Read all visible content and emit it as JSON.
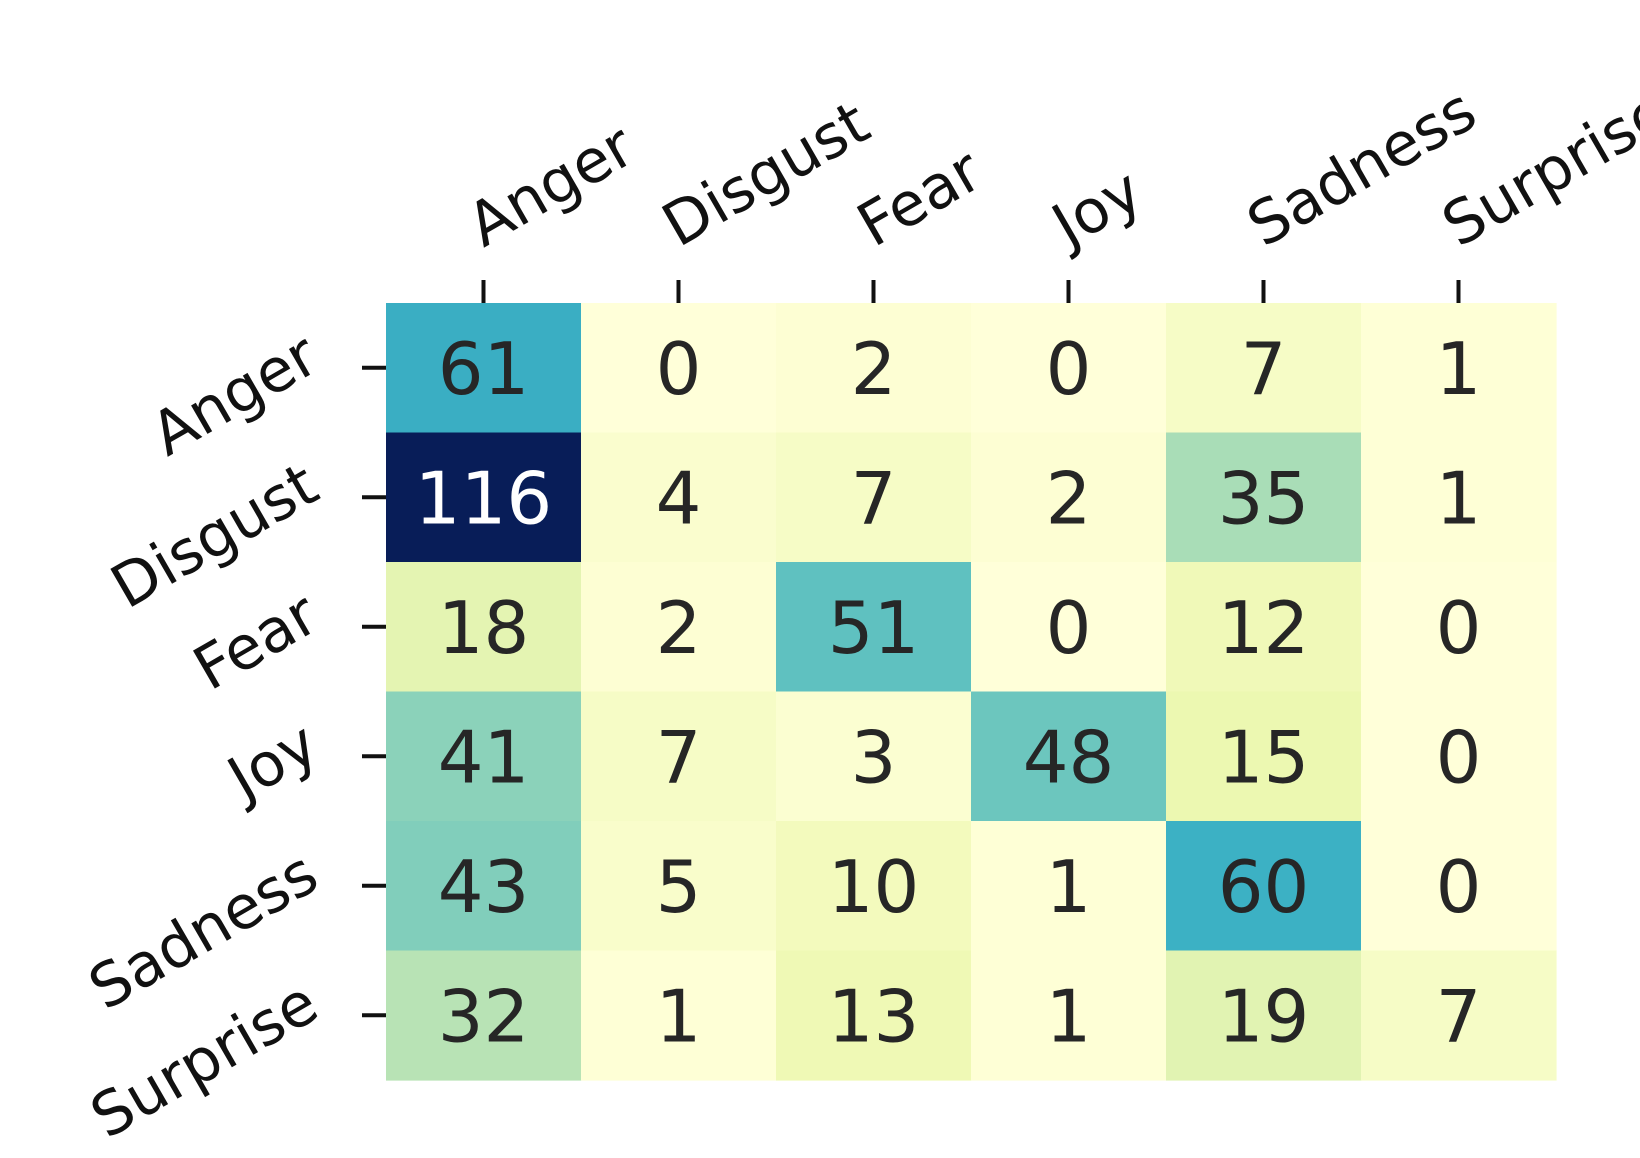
{
  "chart_data": {
    "type": "heatmap",
    "title": "",
    "xlabel": "",
    "ylabel": "",
    "x_categories": [
      "Anger",
      "Disgust",
      "Fear",
      "Joy",
      "Sadness",
      "Surprise"
    ],
    "y_categories": [
      "Anger",
      "Disgust",
      "Fear",
      "Joy",
      "Sadness",
      "Surprise"
    ],
    "values": [
      [
        61,
        0,
        2,
        0,
        7,
        1
      ],
      [
        116,
        4,
        7,
        2,
        35,
        1
      ],
      [
        18,
        2,
        51,
        0,
        12,
        0
      ],
      [
        41,
        7,
        3,
        48,
        15,
        0
      ],
      [
        43,
        5,
        10,
        1,
        60,
        0
      ],
      [
        32,
        1,
        13,
        1,
        19,
        7
      ]
    ],
    "vmin": 0,
    "vmax": 116,
    "colormap": "YlGnBu",
    "x_axis_position": "top",
    "annotations": true,
    "colorbar": false
  }
}
